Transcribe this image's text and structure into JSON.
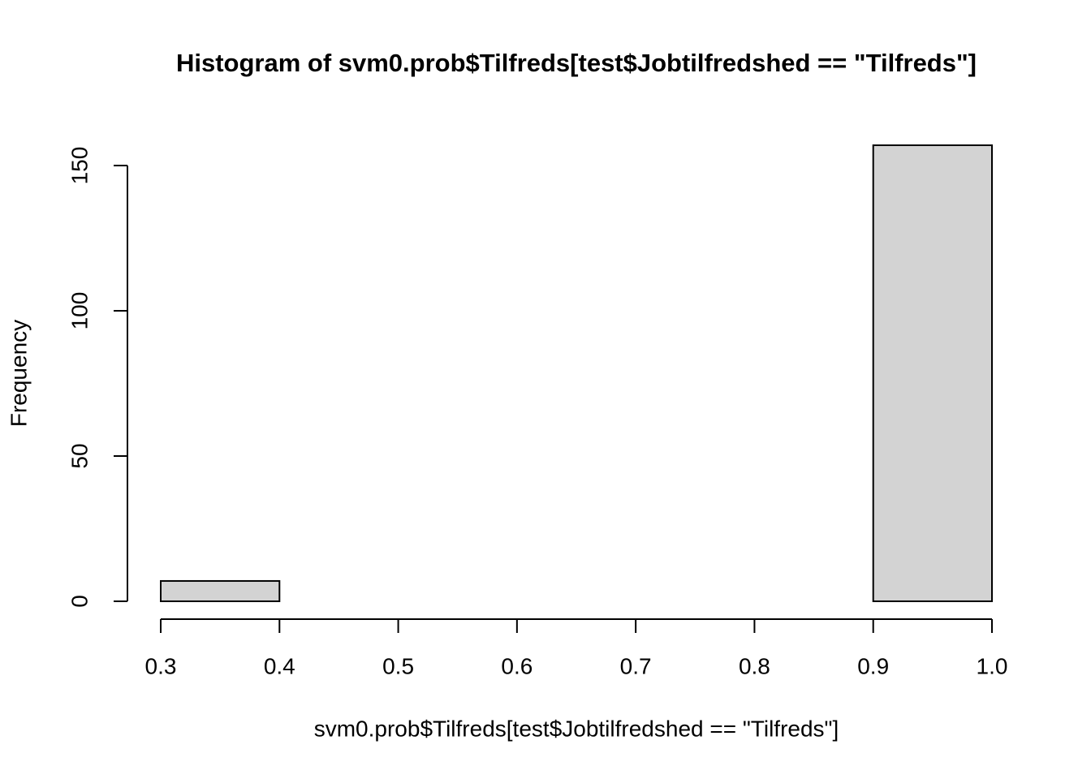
{
  "chart_data": {
    "type": "histogram",
    "title": "Histogram of svm0.prob$Tilfreds[test$Jobtilfredshed == \"Tilfreds\"]",
    "x_label": "svm0.prob$Tilfreds[test$Jobtilfredshed == \"Tilfreds\"]",
    "y_label": "Frequency",
    "bins": [
      0.3,
      0.4,
      0.5,
      0.6,
      0.7,
      0.8,
      0.9,
      1.0
    ],
    "values": [
      7,
      0,
      0,
      0,
      0,
      0,
      157
    ],
    "color": "#d3d3d3",
    "xlim": [
      0.3,
      1.0
    ],
    "xticks": [
      0.3,
      0.4,
      0.5,
      0.6,
      0.7,
      0.8,
      0.9,
      {
        "value": 1,
        "label": "1.0"
      }
    ],
    "ylim": [
      0,
      157
    ],
    "yticks": [
      0,
      50,
      100,
      150
    ]
  }
}
